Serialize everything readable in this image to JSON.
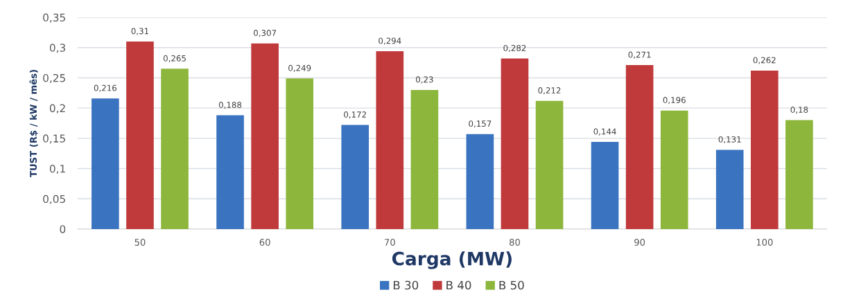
{
  "chart_data": {
    "type": "bar",
    "xlabel": "Carga (MW)",
    "ylabel": "TUST (R$ / kW / mês)",
    "categories": [
      "50",
      "60",
      "70",
      "80",
      "90",
      "100"
    ],
    "series": [
      {
        "name": "B 30",
        "color": "#3a73c0",
        "values": [
          0.216,
          0.188,
          0.172,
          0.157,
          0.144,
          0.131
        ],
        "value_labels": [
          "0,216",
          "0,188",
          "0,172",
          "0,157",
          "0,144",
          "0,131"
        ]
      },
      {
        "name": "B 40",
        "color": "#c0393b",
        "values": [
          0.31,
          0.307,
          0.294,
          0.282,
          0.271,
          0.262
        ],
        "value_labels": [
          "0,31",
          "0,307",
          "0,294",
          "0,282",
          "0,271",
          "0,262"
        ]
      },
      {
        "name": "B 50",
        "color": "#8db63c",
        "values": [
          0.265,
          0.249,
          0.23,
          0.212,
          0.196,
          0.18
        ],
        "value_labels": [
          "0,265",
          "0,249",
          "0,23",
          "0,212",
          "0,196",
          "0,18"
        ]
      }
    ],
    "ylim": [
      0,
      0.35
    ],
    "yticks": [
      0,
      {
        "value": 0.05,
        "label": "0,05"
      },
      {
        "value": 0.1,
        "label": "0,1"
      },
      {
        "value": 0.15,
        "label": "0,15"
      },
      {
        "value": 0.2,
        "label": "0,2"
      },
      {
        "value": 0.25,
        "label": "0,25"
      },
      {
        "value": 0.3,
        "label": "0,3"
      },
      {
        "value": 0.35,
        "label": "0,35"
      }
    ],
    "grid": "y",
    "legend": "bottom"
  }
}
